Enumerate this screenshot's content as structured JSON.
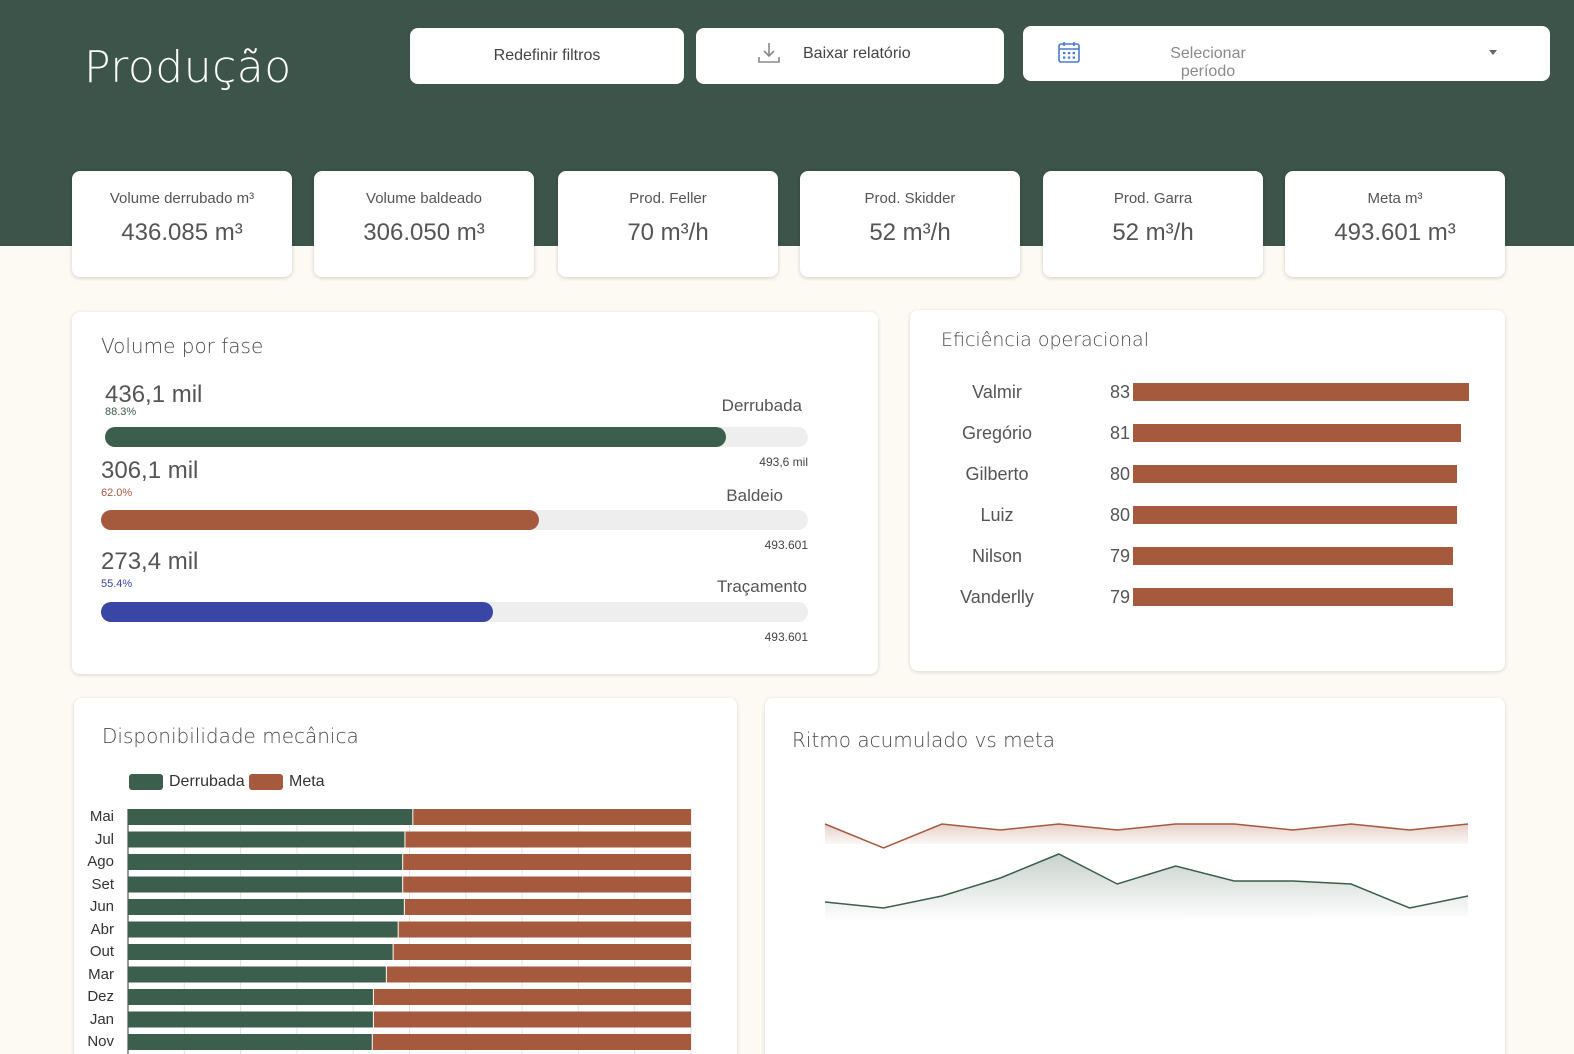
{
  "header": {
    "title": "Produção",
    "reset_label": "Redefinir filtros",
    "download_label": "Baixar relatório",
    "period_placeholder": "Selecionar período"
  },
  "kpis": [
    {
      "label": "Volume derrubado m³",
      "value": "436.085 m³"
    },
    {
      "label": "Volume baldeado",
      "value": "306.050 m³"
    },
    {
      "label": "Prod. Feller",
      "value": "70 m³/h"
    },
    {
      "label": "Prod. Skidder",
      "value": "52 m³/h"
    },
    {
      "label": "Prod.  Garra",
      "value": "52 m³/h"
    },
    {
      "label": "Meta m³",
      "value": "493.601 m³"
    }
  ],
  "volume_por_fase": {
    "title": "Volume por fase",
    "phases": [
      {
        "name": "Derrubada",
        "value_label": "436,1 mil",
        "percent": 88.3,
        "percent_label": "88.3%",
        "target_label": "493,6 mil",
        "color": "#3c5e4c"
      },
      {
        "name": "Baldeio",
        "value_label": "306,1 mil",
        "percent": 62.0,
        "percent_label": "62.0%",
        "target_label": "493.601",
        "color": "#a55a3e"
      },
      {
        "name": "Traçamento",
        "value_label": "273,4 mil",
        "percent": 55.4,
        "percent_label": "55.4%",
        "target_label": "493.601",
        "color": "#3a46a5"
      }
    ]
  },
  "eficiencia": {
    "title": "Eficiência operacional",
    "operators": [
      {
        "name": "Valmir",
        "value": 83
      },
      {
        "name": "Gregório",
        "value": 81
      },
      {
        "name": "Gilberto",
        "value": 80
      },
      {
        "name": "Luiz",
        "value": 80
      },
      {
        "name": "Nilson",
        "value": 79
      },
      {
        "name": "Vanderlly",
        "value": 79
      }
    ],
    "bar_color": "#a55a3e"
  },
  "disponibilidade": {
    "title": "Disponibilidade mecânica",
    "legend": [
      {
        "name": "Derrubada",
        "color": "#3c5e4c"
      },
      {
        "name": "Meta",
        "color": "#a55a3e"
      }
    ]
  },
  "ritmo": {
    "title": "Ritmo acumulado vs meta"
  },
  "chart_data": [
    {
      "type": "bar",
      "orientation": "horizontal",
      "stacked": true,
      "title": "Disponibilidade mecânica",
      "categories": [
        "Mai",
        "Jul",
        "Ago",
        "Set",
        "Jun",
        "Abr",
        "Out",
        "Mar",
        "Dez",
        "Jan",
        "Nov"
      ],
      "series": [
        {
          "name": "Derrubada",
          "values": [
            50.5,
            49.1,
            48.7,
            48.7,
            49.0,
            47.9,
            47.0,
            45.8,
            43.5,
            43.5,
            43.3
          ]
        },
        {
          "name": "Meta",
          "values": [
            49.5,
            50.9,
            51.3,
            51.3,
            51.0,
            52.1,
            53.0,
            54.2,
            56.5,
            56.5,
            56.7
          ]
        }
      ],
      "xlim": [
        0,
        100
      ],
      "grid": true,
      "legend": "top-left"
    },
    {
      "type": "area",
      "title": "Ritmo acumulado vs meta",
      "series": [
        {
          "name": "Meta",
          "values": [
            74,
            70,
            74,
            73,
            74,
            73,
            74,
            74,
            73,
            74,
            73,
            74
          ]
        },
        {
          "name": "Derrubada",
          "values": [
            61,
            60,
            62,
            65,
            69,
            64,
            67,
            64.5,
            64.5,
            64,
            60,
            62
          ]
        }
      ],
      "ylim": [
        50,
        80
      ],
      "grid": false
    }
  ]
}
